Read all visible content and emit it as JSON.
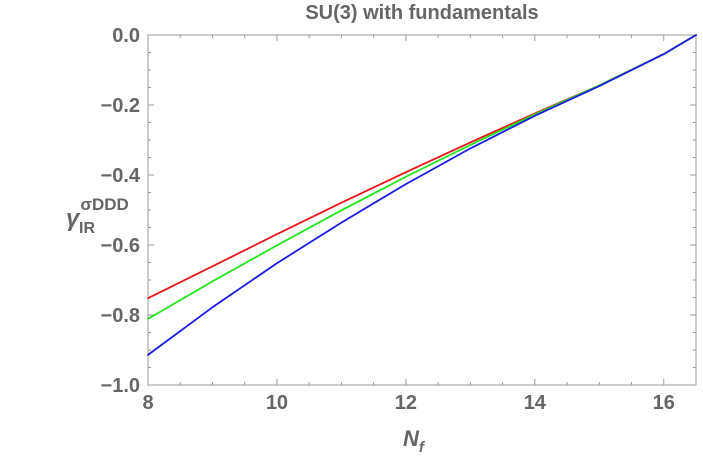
{
  "chart_data": {
    "type": "line",
    "title": "SU(3) with fundamentals",
    "xlabel": {
      "base": "N",
      "sub": "f"
    },
    "ylabel": {
      "base": "γ",
      "sub": "IR",
      "sup": "σDDD"
    },
    "xlim": [
      8,
      16.5
    ],
    "ylim": [
      -1.0,
      0.0
    ],
    "x_ticks": [
      8,
      10,
      12,
      14,
      16
    ],
    "x_tick_labels": [
      "8",
      "10",
      "12",
      "14",
      "16"
    ],
    "y_ticks": [
      0.0,
      -0.2,
      -0.4,
      -0.6,
      -0.8,
      -1.0
    ],
    "y_tick_labels": [
      "0.0",
      "−0.2",
      "−0.4",
      "−0.6",
      "−0.8",
      "−1.0"
    ],
    "grid": false,
    "series": [
      {
        "color": "#e8151b",
        "x": [
          8,
          9,
          10,
          11,
          12,
          13,
          14,
          15,
          16,
          16.5
        ],
        "y": [
          -0.752,
          -0.661,
          -0.569,
          -0.479,
          -0.392,
          -0.307,
          -0.224,
          -0.144,
          -0.0546,
          0.0
        ]
      },
      {
        "color": "#1ee61a",
        "x": [
          8,
          9,
          10,
          11,
          12,
          13,
          14,
          15,
          16,
          16.5
        ],
        "y": [
          -0.811,
          -0.704,
          -0.601,
          -0.501,
          -0.405,
          -0.314,
          -0.227,
          -0.144,
          -0.0546,
          0.0
        ]
      },
      {
        "color": "#1a1ae6",
        "x": [
          8,
          9,
          10,
          11,
          12,
          13,
          14,
          15,
          16,
          16.5
        ],
        "y": [
          -0.914,
          -0.778,
          -0.652,
          -0.536,
          -0.426,
          -0.324,
          -0.231,
          -0.146,
          -0.0546,
          0.0
        ]
      }
    ]
  }
}
